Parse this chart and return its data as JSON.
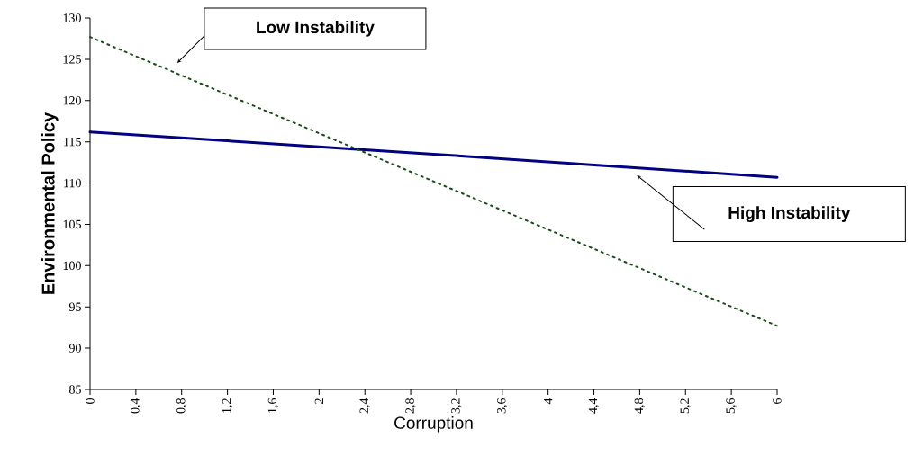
{
  "chart_data": {
    "type": "line",
    "xlabel": "Corruption",
    "ylabel": "Environmental Policy",
    "xlim": [
      0,
      6
    ],
    "ylim": [
      85,
      130
    ],
    "xticks": [
      0,
      {
        "value": 0.4,
        "label": "0,4"
      },
      {
        "value": 0.8,
        "label": "0,8"
      },
      {
        "value": 1.2,
        "label": "1,2"
      },
      {
        "value": 1.6,
        "label": "1,6"
      },
      2,
      {
        "value": 2.4,
        "label": "2,4"
      },
      {
        "value": 2.8,
        "label": "2,8"
      },
      {
        "value": 3.2,
        "label": "3,2"
      },
      {
        "value": 3.6,
        "label": "3,6"
      },
      4,
      {
        "value": 4.4,
        "label": "4,4"
      },
      {
        "value": 4.8,
        "label": "4,8"
      },
      {
        "value": 5.2,
        "label": "5,2"
      },
      {
        "value": 5.6,
        "label": "5,6"
      },
      6
    ],
    "yticks": [
      85,
      90,
      95,
      100,
      105,
      110,
      115,
      120,
      125,
      130
    ],
    "series": [
      {
        "color": "#000080",
        "values": [
          116.2,
          113.5,
          110.7
        ],
        "line_style": "solid"
      },
      {
        "color": "#1a4d1a",
        "values": [
          127.7,
          110.2,
          92.7
        ],
        "line_style": "dotted"
      }
    ],
    "x": [
      0,
      3,
      6
    ],
    "annotations": [
      "Low Instability",
      "High Instability"
    ]
  }
}
